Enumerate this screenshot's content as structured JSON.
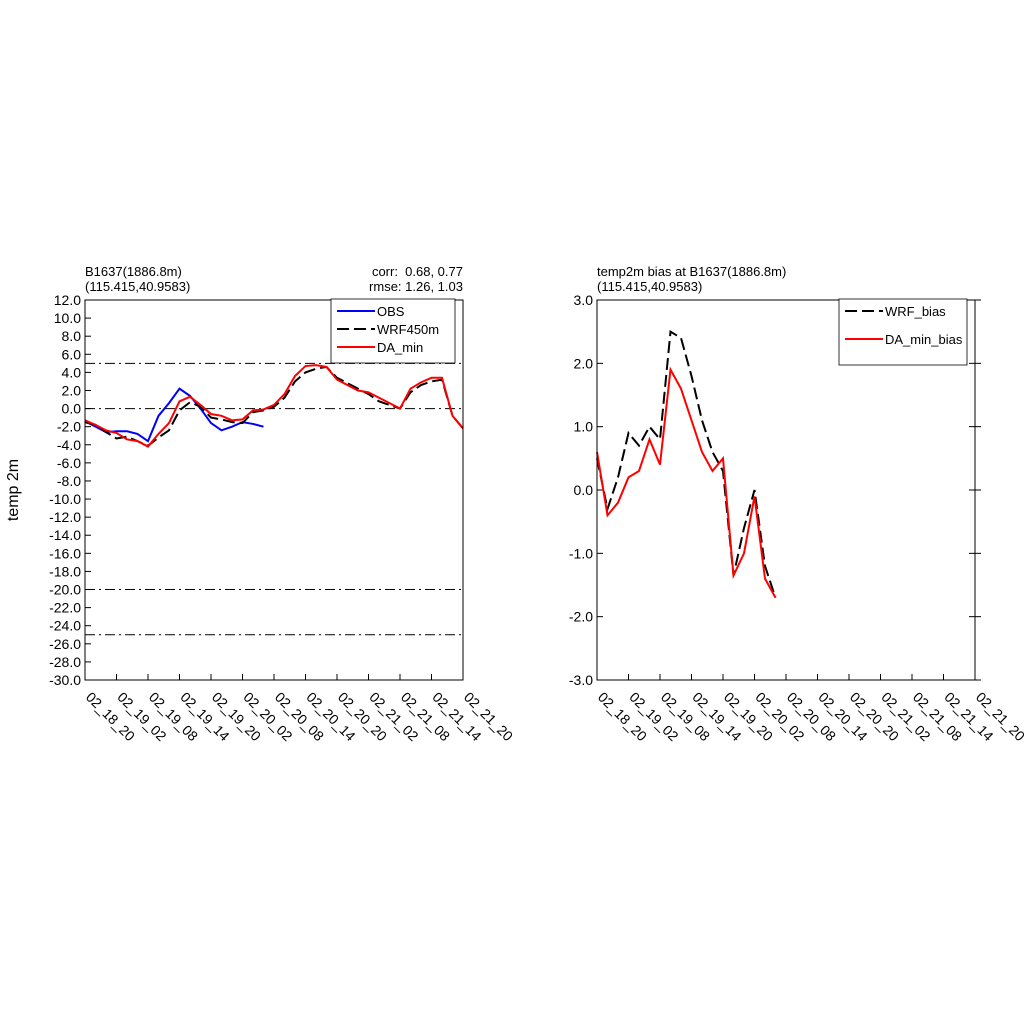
{
  "chart_data": [
    {
      "type": "line",
      "title_lines": [
        "B1637(1886.8m)",
        "(115.415,40.9583)"
      ],
      "stats": [
        "corr:  0.68, 0.77",
        "rmse: 1.26, 1.03"
      ],
      "ylabel": "temp 2m",
      "categories": [
        "02_18_20",
        null,
        null,
        "02_19_02",
        null,
        null,
        "02_19_08",
        null,
        null,
        "02_19_14",
        null,
        null,
        "02_19_20",
        null,
        null,
        "02_20_02",
        null,
        null,
        "02_20_08",
        null,
        null,
        "02_20_14",
        null,
        null,
        "02_20_20",
        null,
        null,
        "02_21_02",
        null,
        null,
        "02_21_08",
        null,
        null,
        "02_21_14",
        null,
        null,
        "02_21_20"
      ],
      "ylim": [
        -30,
        12
      ],
      "yticks": [
        {
          "value": 12,
          "label": "12.0"
        },
        {
          "value": 10,
          "label": "10.0"
        },
        {
          "value": 8,
          "label": "8.0"
        },
        {
          "value": 6,
          "label": "6.0"
        },
        {
          "value": 4,
          "label": "4.0"
        },
        {
          "value": 2,
          "label": "2.0"
        },
        {
          "value": 0,
          "label": "0.0"
        },
        {
          "value": -2,
          "label": "-2.0"
        },
        {
          "value": -4,
          "label": "-4.0"
        },
        {
          "value": -6,
          "label": "-6.0"
        },
        {
          "value": -8,
          "label": "-8.0"
        },
        {
          "value": -10,
          "label": "-10.0"
        },
        {
          "value": -12,
          "label": "-12.0"
        },
        {
          "value": -14,
          "label": "-14.0"
        },
        {
          "value": -16,
          "label": "-16.0"
        },
        {
          "value": -18,
          "label": "-18.0"
        },
        {
          "value": -20,
          "label": "-20.0"
        },
        {
          "value": -22,
          "label": "-22.0"
        },
        {
          "value": -24,
          "label": "-24.0"
        },
        {
          "value": -26,
          "label": "-26.0"
        },
        {
          "value": -28,
          "label": "-28.0"
        },
        {
          "value": -30,
          "label": "-30.0"
        }
      ],
      "ref_lines": [
        5,
        0,
        -20,
        -25
      ],
      "legend": "upper right",
      "mirror_ticks": false,
      "series": [
        {
          "name": "OBS",
          "color": "#0000ff",
          "dashed": false,
          "values": [
            -1.4,
            -2.0,
            -2.6,
            -2.5,
            -2.5,
            -2.8,
            -3.6,
            -0.8,
            0.6,
            2.2,
            1.4,
            0.0,
            -1.6,
            -2.4,
            -2.0,
            -1.5,
            -1.7,
            -2.0,
            null,
            null,
            null,
            null,
            null,
            null,
            null,
            null,
            null,
            null,
            null,
            null,
            null,
            null,
            null,
            null,
            null,
            null,
            null
          ]
        },
        {
          "name": "WRF450m",
          "color": "#000000",
          "dashed": true,
          "values": [
            -1.5,
            -1.8,
            -2.6,
            -3.3,
            -3.1,
            -3.6,
            -4.1,
            -3.2,
            -2.4,
            -0.2,
            0.7,
            0.2,
            -1.0,
            -1.2,
            -1.5,
            -1.6,
            -0.4,
            -0.2,
            0.2,
            1.2,
            3.0,
            4.0,
            4.4,
            4.6,
            3.4,
            2.8,
            2.2,
            1.6,
            0.8,
            0.4,
            0.0,
            1.8,
            2.6,
            3.0,
            3.2,
            -0.8,
            -2.2
          ]
        },
        {
          "name": "DA_min",
          "color": "#ff0000",
          "dashed": false,
          "values": [
            -1.3,
            -1.8,
            -2.4,
            -2.7,
            -3.4,
            -3.6,
            -4.2,
            -2.8,
            -1.6,
            0.8,
            1.3,
            0.4,
            -0.6,
            -0.8,
            -1.3,
            -1.2,
            -0.2,
            -0.1,
            0.4,
            1.6,
            3.6,
            4.7,
            4.8,
            4.6,
            3.2,
            2.6,
            2.0,
            1.8,
            1.2,
            0.6,
            0.0,
            2.2,
            2.9,
            3.4,
            3.4,
            -0.8,
            -2.2
          ]
        }
      ]
    },
    {
      "type": "line",
      "title_lines": [
        "temp2m bias at B1637(1886.8m)",
        "(115.415,40.9583)"
      ],
      "categories": [
        "02_18_20",
        null,
        null,
        "02_19_02",
        null,
        null,
        "02_19_08",
        null,
        null,
        "02_19_14",
        null,
        null,
        "02_19_20",
        null,
        null,
        "02_20_02",
        null,
        null,
        "02_20_08",
        null,
        null,
        "02_20_14",
        null,
        null,
        "02_20_20",
        null,
        null,
        "02_21_02",
        null,
        null,
        "02_21_08",
        null,
        null,
        "02_21_14",
        null,
        null,
        "02_21_20"
      ],
      "ylim": [
        -3,
        3
      ],
      "yticks": [
        {
          "value": 3,
          "label": "3.0"
        },
        {
          "value": 2,
          "label": "2.0"
        },
        {
          "value": 1,
          "label": "1.0"
        },
        {
          "value": 0,
          "label": "0.0"
        },
        {
          "value": -1,
          "label": "-1.0"
        },
        {
          "value": -2,
          "label": "-2.0"
        },
        {
          "value": -3,
          "label": "-3.0"
        }
      ],
      "legend": "upper right",
      "mirror_ticks": true,
      "series": [
        {
          "name": "WRF_bias",
          "color": "#000000",
          "dashed": true,
          "values": [
            0.5,
            -0.3,
            0.2,
            0.9,
            0.7,
            1.0,
            0.8,
            2.5,
            2.4,
            1.8,
            1.1,
            0.6,
            0.3,
            -1.35,
            -0.6,
            0.0,
            -1.2,
            -1.7,
            null,
            null,
            null,
            null,
            null,
            null,
            null,
            null,
            null,
            null,
            null,
            null,
            null,
            null,
            null,
            null,
            null,
            null,
            null
          ]
        },
        {
          "name": "DA_min_bias",
          "color": "#ff0000",
          "dashed": false,
          "values": [
            0.6,
            -0.4,
            -0.2,
            0.2,
            0.3,
            0.8,
            0.4,
            1.9,
            1.6,
            1.1,
            0.6,
            0.3,
            0.5,
            -1.35,
            -1.0,
            -0.1,
            -1.4,
            -1.7,
            null,
            null,
            null,
            null,
            null,
            null,
            null,
            null,
            null,
            null,
            null,
            null,
            null,
            null,
            null,
            null,
            null,
            null,
            null
          ]
        }
      ]
    }
  ]
}
